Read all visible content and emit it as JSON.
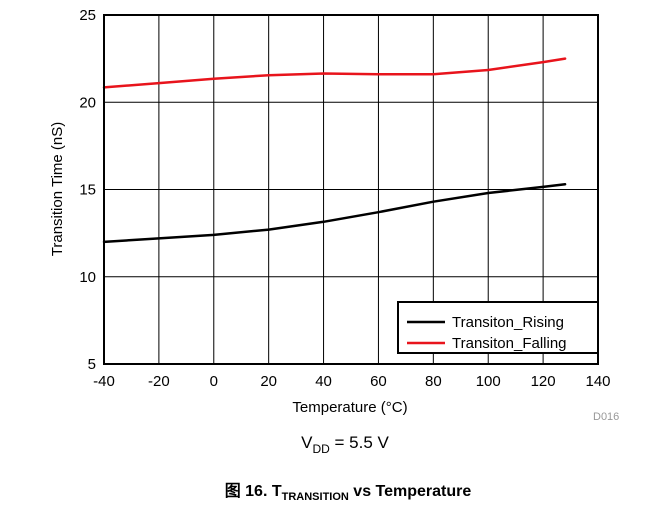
{
  "chart_data": {
    "type": "line",
    "xlabel": "Temperature (°C)",
    "ylabel": "Transition Time (nS)",
    "xlim": [
      -40,
      140
    ],
    "ylim": [
      5,
      25
    ],
    "xticks": [
      -40,
      -20,
      0,
      20,
      40,
      60,
      80,
      100,
      120,
      140
    ],
    "yticks": [
      5,
      10,
      15,
      20,
      25
    ],
    "grid": true,
    "legend_position": "bottom-right",
    "series": [
      {
        "name": "Transiton_Rising",
        "color": "#000000",
        "x": [
          -40,
          -20,
          0,
          20,
          40,
          60,
          80,
          100,
          120,
          128
        ],
        "y": [
          12.0,
          12.2,
          12.4,
          12.7,
          13.15,
          13.7,
          14.3,
          14.8,
          15.15,
          15.3
        ]
      },
      {
        "name": "Transiton_Falling",
        "color": "#e8141c",
        "x": [
          -40,
          -20,
          0,
          20,
          40,
          60,
          80,
          100,
          120,
          128
        ],
        "y": [
          20.85,
          21.1,
          21.35,
          21.55,
          21.65,
          21.6,
          21.6,
          21.85,
          22.3,
          22.5
        ]
      }
    ]
  },
  "doc_id": "D016",
  "condition": {
    "v_main": "V",
    "v_sub": "DD",
    "v_rest": " = 5.5 V"
  },
  "caption": {
    "prefix": "图 16. T",
    "sub": "TRANSITION",
    "suffix": " vs Temperature"
  }
}
